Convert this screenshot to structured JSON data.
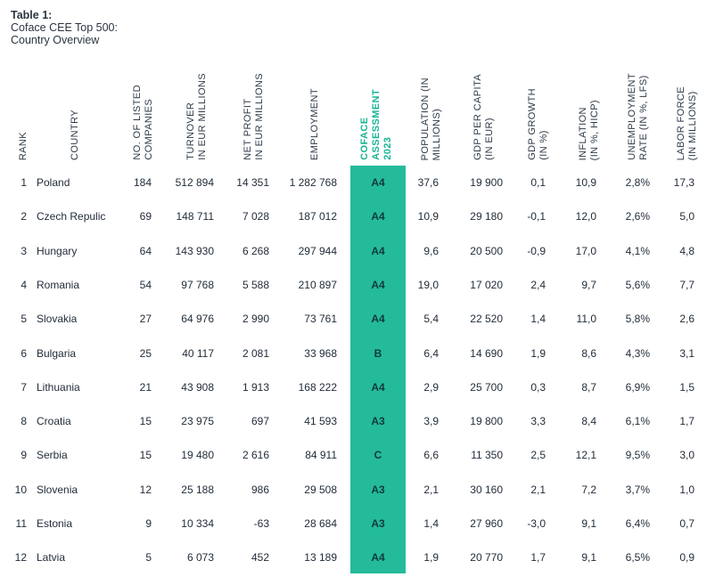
{
  "caption": {
    "title": "Table 1:",
    "line2": "Coface CEE Top 500:",
    "line3": "Country Overview"
  },
  "colors": {
    "accent": "#24bb9a",
    "accent_text": "#17b594",
    "text": "#1f2a37"
  },
  "headers": {
    "rank": "RANK",
    "country": "COUNTRY",
    "listed": "NO. OF LISTED\nCOMPANIES",
    "turnover": "TURNOVER\nIN EUR MILLIONS",
    "profit": "NET PROFIT\nIN EUR MILLIONS",
    "employment": "EMPLOYMENT",
    "assessment": "COFACE\nASSESSMENT\n2023",
    "population": "POPULATION (IN\nMILLIONS)",
    "gdp_pc": "GDP PER CAPITA\n(IN EUR)",
    "gdp_growth": "GDP GROWTH\n(IN %)",
    "inflation": "INFLATION\n(IN %, HICP)",
    "unemployment": "UNEMPLOYMENT\nRATE (IN %, LFS)",
    "labor": "LABOR FORCE\n(IN MILLIONS)"
  },
  "rows": [
    {
      "rank": "1",
      "country": "Poland",
      "listed": "184",
      "turnover": "512 894",
      "profit": "14 351",
      "employment": "1 282 768",
      "assessment": "A4",
      "population": "37,6",
      "gdp_pc": "19 900",
      "gdp_growth": "0,1",
      "inflation": "10,9",
      "unemployment": "2,8%",
      "labor": "17,3"
    },
    {
      "rank": "2",
      "country": "Czech Repulic",
      "listed": "69",
      "turnover": "148 711",
      "profit": "7 028",
      "employment": "187 012",
      "assessment": "A4",
      "population": "10,9",
      "gdp_pc": "29 180",
      "gdp_growth": "-0,1",
      "inflation": "12,0",
      "unemployment": "2,6%",
      "labor": "5,0"
    },
    {
      "rank": "3",
      "country": "Hungary",
      "listed": "64",
      "turnover": "143 930",
      "profit": "6 268",
      "employment": "297 944",
      "assessment": "A4",
      "population": "9,6",
      "gdp_pc": "20 500",
      "gdp_growth": "-0,9",
      "inflation": "17,0",
      "unemployment": "4,1%",
      "labor": "4,8"
    },
    {
      "rank": "4",
      "country": "Romania",
      "listed": "54",
      "turnover": "97 768",
      "profit": "5 588",
      "employment": "210 897",
      "assessment": "A4",
      "population": "19,0",
      "gdp_pc": "17 020",
      "gdp_growth": "2,4",
      "inflation": "9,7",
      "unemployment": "5,6%",
      "labor": "7,7"
    },
    {
      "rank": "5",
      "country": "Slovakia",
      "listed": "27",
      "turnover": "64 976",
      "profit": "2 990",
      "employment": "73 761",
      "assessment": "A4",
      "population": "5,4",
      "gdp_pc": "22 520",
      "gdp_growth": "1,4",
      "inflation": "11,0",
      "unemployment": "5,8%",
      "labor": "2,6"
    },
    {
      "rank": "6",
      "country": "Bulgaria",
      "listed": "25",
      "turnover": "40 117",
      "profit": "2 081",
      "employment": "33 968",
      "assessment": "B",
      "population": "6,4",
      "gdp_pc": "14 690",
      "gdp_growth": "1,9",
      "inflation": "8,6",
      "unemployment": "4,3%",
      "labor": "3,1"
    },
    {
      "rank": "7",
      "country": "Lithuania",
      "listed": "21",
      "turnover": "43 908",
      "profit": "1 913",
      "employment": "168 222",
      "assessment": "A4",
      "population": "2,9",
      "gdp_pc": "25 700",
      "gdp_growth": "0,3",
      "inflation": "8,7",
      "unemployment": "6,9%",
      "labor": "1,5"
    },
    {
      "rank": "8",
      "country": "Croatia",
      "listed": "15",
      "turnover": "23 975",
      "profit": "697",
      "employment": "41 593",
      "assessment": "A3",
      "population": "3,9",
      "gdp_pc": "19 800",
      "gdp_growth": "3,3",
      "inflation": "8,4",
      "unemployment": "6,1%",
      "labor": "1,7"
    },
    {
      "rank": "9",
      "country": "Serbia",
      "listed": "15",
      "turnover": "19 480",
      "profit": "2 616",
      "employment": "84 911",
      "assessment": "C",
      "population": "6,6",
      "gdp_pc": "11 350",
      "gdp_growth": "2,5",
      "inflation": "12,1",
      "unemployment": "9,5%",
      "labor": "3,0"
    },
    {
      "rank": "10",
      "country": "Slovenia",
      "listed": "12",
      "turnover": "25 188",
      "profit": "986",
      "employment": "29 508",
      "assessment": "A3",
      "population": "2,1",
      "gdp_pc": "30 160",
      "gdp_growth": "2,1",
      "inflation": "7,2",
      "unemployment": "3,7%",
      "labor": "1,0"
    },
    {
      "rank": "11",
      "country": "Estonia",
      "listed": "9",
      "turnover": "10 334",
      "profit": "-63",
      "employment": "28 684",
      "assessment": "A3",
      "population": "1,4",
      "gdp_pc": "27 960",
      "gdp_growth": "-3,0",
      "inflation": "9,1",
      "unemployment": "6,4%",
      "labor": "0,7"
    },
    {
      "rank": "12",
      "country": "Latvia",
      "listed": "5",
      "turnover": "6 073",
      "profit": "452",
      "employment": "13 189",
      "assessment": "A4",
      "population": "1,9",
      "gdp_pc": "20 770",
      "gdp_growth": "1,7",
      "inflation": "9,1",
      "unemployment": "6,5%",
      "labor": "0,9"
    }
  ]
}
